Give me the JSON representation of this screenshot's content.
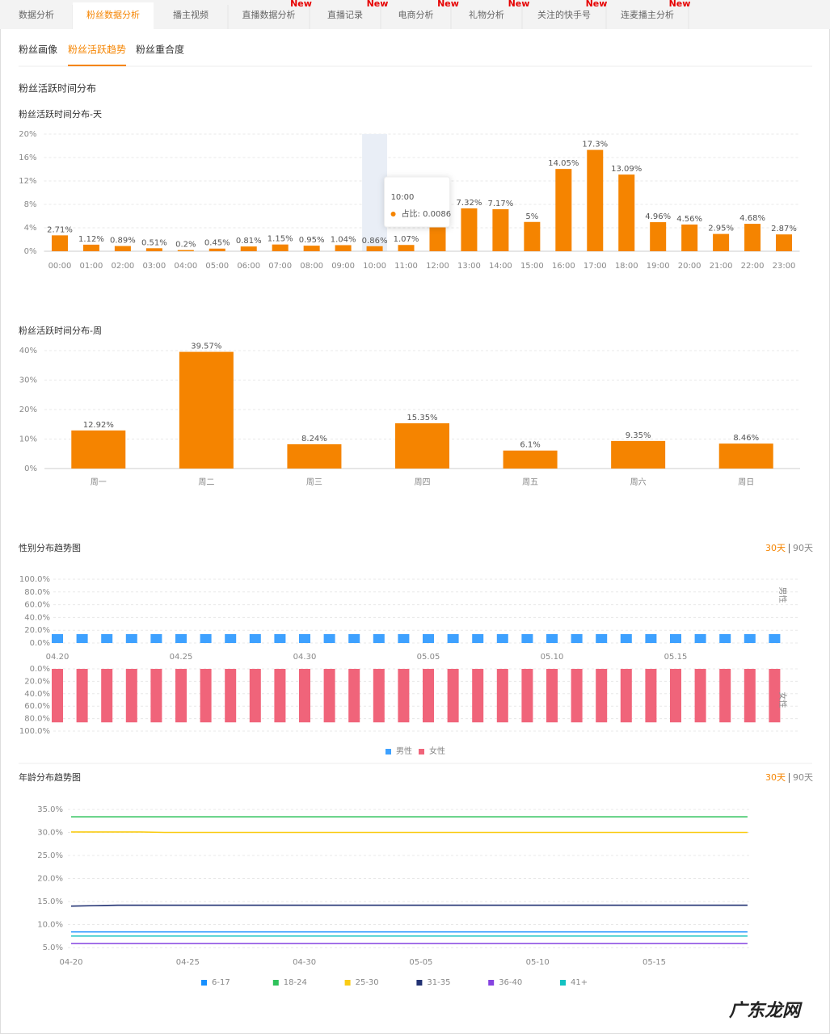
{
  "tabs": [
    {
      "label": "数据分析"
    },
    {
      "label": "粉丝数据分析"
    },
    {
      "label": "播主视频"
    },
    {
      "label": "直播数据分析",
      "badge": "New"
    },
    {
      "label": "直播记录",
      "badge": "New"
    },
    {
      "label": "电商分析",
      "badge": "New"
    },
    {
      "label": "礼物分析",
      "badge": "New"
    },
    {
      "label": "关注的快手号",
      "badge": "New"
    },
    {
      "label": "连麦播主分析",
      "badge": "New"
    }
  ],
  "active_tab": 1,
  "subtabs": [
    "粉丝画像",
    "粉丝活跃趋势",
    "粉丝重合度"
  ],
  "active_subtab": 1,
  "section_title": "粉丝活跃时间分布",
  "watermark": "广东龙网",
  "chart_data": [
    {
      "type": "bar",
      "title": "粉丝活跃时间分布-天",
      "color": "#f58400",
      "categories": [
        "00:00",
        "01:00",
        "02:00",
        "03:00",
        "04:00",
        "05:00",
        "06:00",
        "07:00",
        "08:00",
        "09:00",
        "10:00",
        "11:00",
        "12:00",
        "13:00",
        "14:00",
        "15:00",
        "16:00",
        "17:00",
        "18:00",
        "19:00",
        "20:00",
        "21:00",
        "22:00",
        "23:00"
      ],
      "values": [
        2.71,
        1.12,
        0.89,
        0.51,
        0.2,
        0.45,
        0.81,
        1.15,
        0.95,
        1.04,
        0.86,
        1.07,
        4.2,
        7.32,
        7.17,
        5,
        14.05,
        17.3,
        13.09,
        4.96,
        4.56,
        2.95,
        4.68,
        2.87
      ],
      "value_labels": [
        "2.71%",
        "1.12%",
        "0.89%",
        "0.51%",
        "0.2%",
        "0.45%",
        "0.81%",
        "1.15%",
        "0.95%",
        "1.04%",
        "0.86%",
        "1.07%",
        null,
        "7.32%",
        "7.17%",
        "5%",
        "14.05%",
        "17.3%",
        "13.09%",
        "4.96%",
        "4.56%",
        "2.95%",
        "4.68%",
        "2.87%"
      ],
      "ylim": [
        0,
        20
      ],
      "yticks": [
        {
          "value": 0,
          "label": "0%"
        },
        {
          "value": 4,
          "label": "4%"
        },
        {
          "value": 8,
          "label": "8%"
        },
        {
          "value": 12,
          "label": "12%"
        },
        {
          "value": 16,
          "label": "16%"
        },
        {
          "value": 20,
          "label": "20%"
        }
      ],
      "grid": true,
      "tooltip": {
        "index": 10,
        "title": "10:00",
        "label": "占比: 0.0086"
      }
    },
    {
      "type": "bar",
      "title": "粉丝活跃时间分布-周",
      "color": "#f58400",
      "categories": [
        "周一",
        "周二",
        "周三",
        "周四",
        "周五",
        "周六",
        "周日"
      ],
      "values": [
        12.92,
        39.57,
        8.24,
        15.35,
        6.1,
        9.35,
        8.46
      ],
      "value_labels": [
        "12.92%",
        "39.57%",
        "8.24%",
        "15.35%",
        "6.1%",
        "9.35%",
        "8.46%"
      ],
      "ylim": [
        0,
        40
      ],
      "yticks": [
        {
          "value": 0,
          "label": "0%"
        },
        {
          "value": 10,
          "label": "10%"
        },
        {
          "value": 20,
          "label": "20%"
        },
        {
          "value": 30,
          "label": "30%"
        },
        {
          "value": 40,
          "label": "40%"
        }
      ],
      "grid": true
    },
    {
      "type": "mirrored_bar",
      "title": "性别分布趋势图",
      "periods": [
        "30天",
        "90天"
      ],
      "active_period": 0,
      "categories": [
        "04.20",
        null,
        null,
        null,
        null,
        "04.25",
        null,
        null,
        null,
        null,
        "04.30",
        null,
        null,
        null,
        null,
        "05.05",
        null,
        null,
        null,
        null,
        "05.10",
        null,
        null,
        null,
        null,
        "05.15",
        null,
        null,
        null,
        null
      ],
      "series": [
        {
          "name": "男性",
          "color": "#3ea1ff",
          "values": [
            14,
            14,
            14,
            14,
            14,
            14,
            14,
            14,
            14,
            14,
            14,
            14,
            14,
            14,
            14,
            14,
            14,
            14,
            14,
            14,
            14,
            14,
            14,
            14,
            14,
            14,
            14,
            14,
            14,
            14
          ]
        },
        {
          "name": "女性",
          "color": "#f0647a",
          "values": [
            86,
            86,
            86,
            86,
            86,
            86,
            86,
            86,
            86,
            86,
            86,
            86,
            86,
            86,
            86,
            86,
            86,
            86,
            86,
            86,
            86,
            86,
            86,
            86,
            86,
            86,
            86,
            86,
            86,
            86
          ]
        }
      ],
      "ylim": [
        0,
        100
      ],
      "yticks": [
        {
          "value": 0,
          "label": "0.0%"
        },
        {
          "value": 20,
          "label": "20.0%"
        },
        {
          "value": 40,
          "label": "40.0%"
        },
        {
          "value": 60,
          "label": "60.0%"
        },
        {
          "value": 80,
          "label": "80.0%"
        },
        {
          "value": 100,
          "label": "100.0%"
        }
      ],
      "grid": true,
      "legend": "bottom"
    },
    {
      "type": "line",
      "title": "年龄分布趋势图",
      "periods": [
        "30天",
        "90天"
      ],
      "active_period": 0,
      "categories": [
        "04-20",
        null,
        null,
        null,
        null,
        "04-25",
        null,
        null,
        null,
        null,
        "04-30",
        null,
        null,
        null,
        null,
        "05-05",
        null,
        null,
        null,
        null,
        "05-10",
        null,
        null,
        null,
        null,
        "05-15",
        null,
        null,
        null,
        null
      ],
      "series": [
        {
          "name": "6-17",
          "color": "#1890ff",
          "values": [
            8.4,
            8.4,
            8.4,
            8.4,
            8.4,
            8.4,
            8.4,
            8.4,
            8.4,
            8.4,
            8.4,
            8.4,
            8.4,
            8.4,
            8.4,
            8.4,
            8.4,
            8.4,
            8.4,
            8.4,
            8.4,
            8.4,
            8.4,
            8.4,
            8.4,
            8.4,
            8.4,
            8.4,
            8.4,
            8.4
          ]
        },
        {
          "name": "18-24",
          "color": "#2fc25b",
          "values": [
            33.4,
            33.4,
            33.4,
            33.4,
            33.4,
            33.4,
            33.4,
            33.4,
            33.4,
            33.4,
            33.4,
            33.4,
            33.4,
            33.4,
            33.4,
            33.4,
            33.4,
            33.4,
            33.4,
            33.4,
            33.4,
            33.4,
            33.4,
            33.4,
            33.4,
            33.4,
            33.4,
            33.4,
            33.4,
            33.4
          ]
        },
        {
          "name": "25-30",
          "color": "#facc14",
          "values": [
            30.1,
            30.1,
            30.1,
            30.1,
            30,
            30,
            30,
            30,
            30,
            30,
            30,
            30,
            30,
            30,
            30,
            30,
            30,
            30,
            30,
            30,
            30,
            30,
            30,
            30,
            30,
            30,
            30,
            30,
            30,
            30
          ]
        },
        {
          "name": "31-35",
          "color": "#223273",
          "values": [
            14,
            14.1,
            14.2,
            14.2,
            14.2,
            14.2,
            14.2,
            14.2,
            14.2,
            14.2,
            14.2,
            14.2,
            14.2,
            14.2,
            14.2,
            14.2,
            14.2,
            14.2,
            14.2,
            14.2,
            14.2,
            14.2,
            14.2,
            14.2,
            14.2,
            14.2,
            14.2,
            14.2,
            14.2,
            14.2
          ]
        },
        {
          "name": "36-40",
          "color": "#8543e0",
          "values": [
            5.9,
            5.9,
            5.9,
            5.9,
            5.9,
            5.9,
            5.9,
            5.9,
            5.9,
            5.9,
            5.9,
            5.9,
            5.9,
            5.9,
            5.9,
            5.9,
            5.9,
            5.9,
            5.9,
            5.9,
            5.9,
            5.9,
            5.9,
            5.9,
            5.9,
            5.9,
            5.9,
            5.9,
            5.9,
            5.9
          ]
        },
        {
          "name": "41+",
          "color": "#13c2c2",
          "values": [
            7.5,
            7.5,
            7.5,
            7.5,
            7.5,
            7.5,
            7.5,
            7.5,
            7.5,
            7.5,
            7.5,
            7.5,
            7.5,
            7.5,
            7.5,
            7.5,
            7.5,
            7.5,
            7.5,
            7.5,
            7.5,
            7.5,
            7.5,
            7.5,
            7.5,
            7.5,
            7.5,
            7.5,
            7.5,
            7.5
          ]
        }
      ],
      "ylim": [
        5,
        35
      ],
      "yticks": [
        {
          "value": 5,
          "label": "5.0%"
        },
        {
          "value": 10,
          "label": "10.0%"
        },
        {
          "value": 15,
          "label": "15.0%"
        },
        {
          "value": 20,
          "label": "20.0%"
        },
        {
          "value": 25,
          "label": "25.0%"
        },
        {
          "value": 30,
          "label": "30.0%"
        },
        {
          "value": 35,
          "label": "35.0%"
        }
      ],
      "grid": true,
      "legend": "bottom"
    }
  ]
}
